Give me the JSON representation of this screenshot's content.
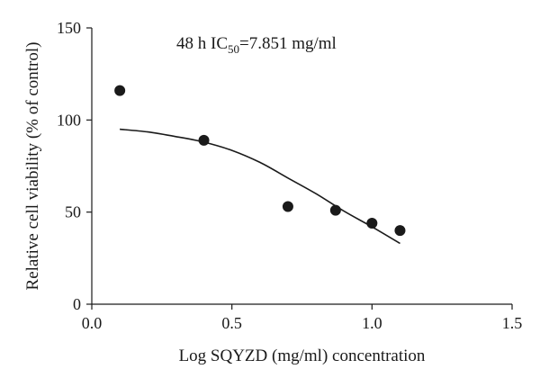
{
  "chart_data": {
    "type": "scatter",
    "title": "",
    "xlabel": "Log SQYZD (mg/ml) concentration",
    "ylabel": "Relative cell viability (% of control)",
    "xlim": [
      0.0,
      1.5
    ],
    "ylim": [
      0,
      150
    ],
    "x_ticks": [
      "0.0",
      "0.5",
      "1.0",
      "1.5"
    ],
    "y_ticks": [
      "0",
      "50",
      "100",
      "150"
    ],
    "grid": false,
    "legend": "none",
    "annotation": {
      "prefix": "48 h IC",
      "subscript": "50",
      "suffix": "=7.851 mg/ml"
    },
    "points": {
      "color": "#1a1a1a",
      "x": [
        0.1,
        0.4,
        0.7,
        0.87,
        1.0,
        1.1
      ],
      "y": [
        116,
        89,
        53,
        51,
        44,
        40
      ]
    },
    "fit_curve": {
      "color": "#1a1a1a",
      "x": [
        0.1,
        0.2,
        0.3,
        0.4,
        0.5,
        0.6,
        0.7,
        0.8,
        0.9,
        1.0,
        1.1
      ],
      "y": [
        95,
        93.5,
        91,
        88,
        83.5,
        77,
        68.5,
        60,
        50.5,
        42,
        33
      ]
    }
  }
}
